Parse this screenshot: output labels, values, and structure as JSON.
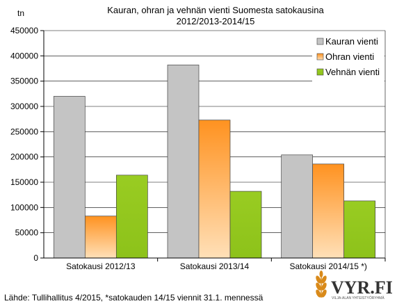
{
  "chart_data": {
    "type": "bar",
    "title_lines": [
      "Kauran, ohran ja vehnän vienti Suomesta satokausina",
      "2012/2013-2014/15"
    ],
    "ylabel": "tn",
    "ylim": [
      0,
      450000
    ],
    "yticks": [
      0,
      50000,
      100000,
      150000,
      200000,
      250000,
      300000,
      350000,
      400000,
      450000
    ],
    "grid": true,
    "legend_position": "top-right",
    "categories": [
      "Satokausi 2012/13",
      "Satokausi 2013/14",
      "Satokausi 2014/15 *)"
    ],
    "series": [
      {
        "name": "Kauran vienti",
        "values": [
          320000,
          382000,
          204000
        ]
      },
      {
        "name": "Ohran vienti",
        "values": [
          83000,
          273000,
          186000
        ]
      },
      {
        "name": "Vehnän vienti",
        "values": [
          164000,
          132000,
          113000
        ]
      }
    ],
    "colors": [
      "#c0c0c0",
      "#ff9a2e",
      "#99cc33"
    ]
  },
  "footer": {
    "source": "Lähde: Tullihallitus 4/2015, *satokauden 14/15 viennit 31.1. mennessä"
  },
  "logo": {
    "text": "VYR.FI",
    "subtext": "VILJA-ALAN YHTEISTYÖRYHMÄ"
  }
}
